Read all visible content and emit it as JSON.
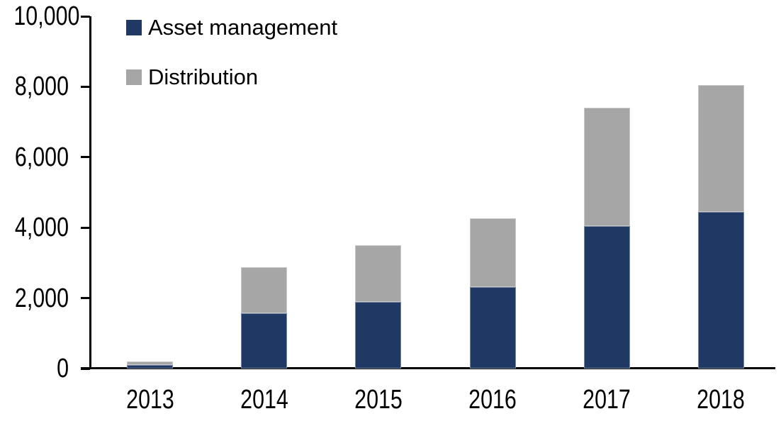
{
  "chart_data": {
    "type": "bar",
    "stacked": true,
    "title": "",
    "xlabel": "",
    "ylabel": "",
    "categories": [
      "2013",
      "2014",
      "2015",
      "2016",
      "2017",
      "2018"
    ],
    "series": [
      {
        "name": "Asset management",
        "color": "#1F3864",
        "values": [
          100,
          1570,
          1890,
          2310,
          4040,
          4450
        ]
      },
      {
        "name": "Distribution",
        "color": "#A6A6A6",
        "values": [
          110,
          1310,
          1610,
          1950,
          3360,
          3600
        ]
      }
    ],
    "totals": [
      210,
      2880,
      3500,
      4260,
      7400,
      8050
    ],
    "ylim": [
      0,
      10000
    ],
    "yticks": [
      0,
      2000,
      4000,
      6000,
      8000,
      10000
    ],
    "ytick_labels": [
      "0",
      "2,000",
      "4,000",
      "6,000",
      "8,000",
      "10,000"
    ],
    "grid": false,
    "legend_position": "top-left",
    "axis_color": "#000000",
    "background_color": "#FFFFFF"
  }
}
